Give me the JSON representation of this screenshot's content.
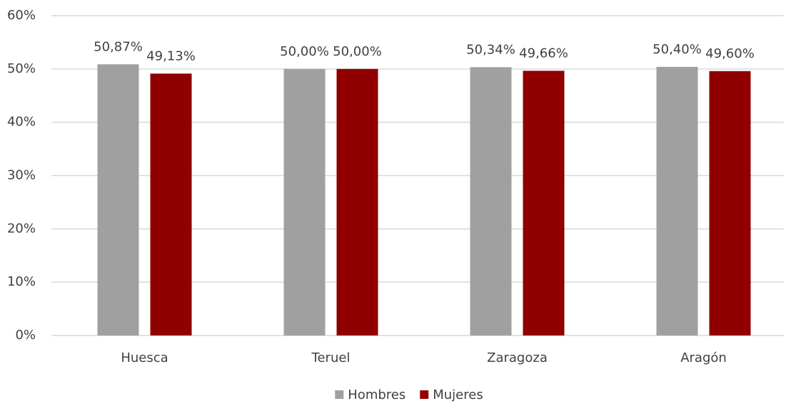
{
  "chart_data": {
    "type": "bar",
    "categories": [
      "Huesca",
      "Teruel",
      "Zaragoza",
      "Aragón"
    ],
    "series": [
      {
        "name": "Hombres",
        "color": "#a0a0a0",
        "values": [
          50.87,
          50.0,
          50.34,
          50.4
        ],
        "value_labels": [
          "50,87%",
          "50,00%",
          "50,34%",
          "50,40%"
        ]
      },
      {
        "name": "Mujeres",
        "color": "#900000",
        "values": [
          49.13,
          50.0,
          49.66,
          49.6
        ],
        "value_labels": [
          "49,13%",
          "50,00%",
          "49,66%",
          "49,60%"
        ]
      }
    ],
    "ylim": [
      0,
      60
    ],
    "yticks": [
      {
        "value": 0,
        "label": "0%"
      },
      {
        "value": 10,
        "label": "10%"
      },
      {
        "value": 20,
        "label": "20%"
      },
      {
        "value": 30,
        "label": "30%"
      },
      {
        "value": 40,
        "label": "40%"
      },
      {
        "value": 50,
        "label": "50%"
      },
      {
        "value": 60,
        "label": "60%"
      }
    ],
    "grid": true,
    "legend": "bottom"
  }
}
